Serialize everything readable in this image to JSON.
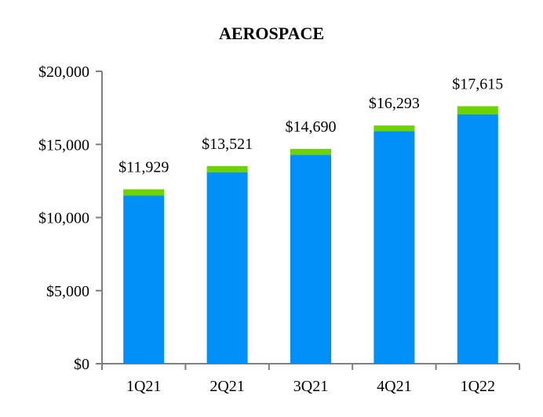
{
  "chart_data": {
    "type": "bar",
    "stacked": true,
    "title": "AEROSPACE",
    "xlabel": "",
    "ylabel": "",
    "categories": [
      "1Q21",
      "2Q21",
      "3Q21",
      "4Q21",
      "1Q22"
    ],
    "series": [
      {
        "color": "#0090F8",
        "values": [
          11500,
          13100,
          14300,
          15900,
          17050
        ]
      },
      {
        "color": "#6DD300",
        "values": [
          429,
          421,
          390,
          393,
          565
        ]
      }
    ],
    "totals": [
      11929,
      13521,
      14690,
      16293,
      17615
    ],
    "data_labels": [
      "$11,929",
      "$13,521",
      "$14,690",
      "$16,293",
      "$17,615"
    ],
    "ylim": [
      0,
      20000
    ],
    "yticks": [
      0,
      5000,
      10000,
      15000,
      20000
    ],
    "ytick_labels": [
      "$0",
      "$5,000",
      "$10,000",
      "$15,000",
      "$20,000"
    ],
    "grid": false,
    "legend": "none",
    "axis_color": "#7F7F7F"
  }
}
